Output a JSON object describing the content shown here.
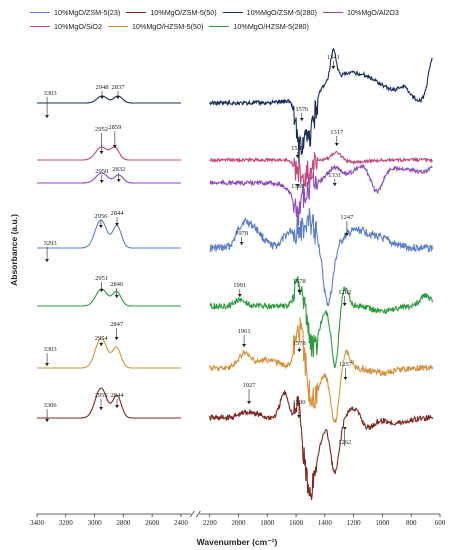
{
  "chart_data": {
    "type": "line",
    "xlabel": "Wavenumber (cm⁻¹)",
    "ylabel": "Absorbance (a.u.)",
    "xlim": [
      3400,
      600
    ],
    "x_ticks": [
      3400,
      3200,
      3000,
      2800,
      2600,
      2400,
      2200,
      2000,
      1800,
      1600,
      1400,
      1200,
      1000,
      800,
      600
    ],
    "axis_break": [
      2400,
      2200
    ],
    "grid": false,
    "legend_position": "top",
    "series": [
      {
        "name": "10%MgO/ZSM-5(23)",
        "color": "#5b7fc8",
        "peak_labels": [
          "3293",
          "2956",
          "2844",
          "1978",
          "1247"
        ]
      },
      {
        "name": "10%MgO/ZSM-5(50)",
        "color": "#7b2a22",
        "peak_labels": [
          "3306",
          "2955",
          "2844",
          "1927",
          "1580",
          "1262"
        ]
      },
      {
        "name": "10%MgO/ZSM-5(280)",
        "color": "#1a2d5a",
        "peak_labels": [
          "3303",
          "2948",
          "2837",
          "1576",
          "1341"
        ]
      },
      {
        "name": "10%MgO/Al2O3",
        "color": "#8d4bb8",
        "peak_labels": [
          "2950",
          "2832",
          "1589",
          "1331"
        ]
      },
      {
        "name": "10%MgO/SiO2",
        "color": "#c2487d",
        "peak_labels": [
          "2952",
          "2859",
          "1589",
          "1317"
        ]
      },
      {
        "name": "10%MgO/HZSM-5(50)",
        "color": "#d4913c",
        "peak_labels": [
          "3303",
          "2954",
          "2847",
          "1961",
          "1578",
          "1257"
        ]
      },
      {
        "name": "10%MgO/HZSM-5(280)",
        "color": "#2e9b3e",
        "peak_labels": [
          "2951",
          "2846",
          "1991",
          "1578",
          "1262"
        ]
      }
    ]
  }
}
